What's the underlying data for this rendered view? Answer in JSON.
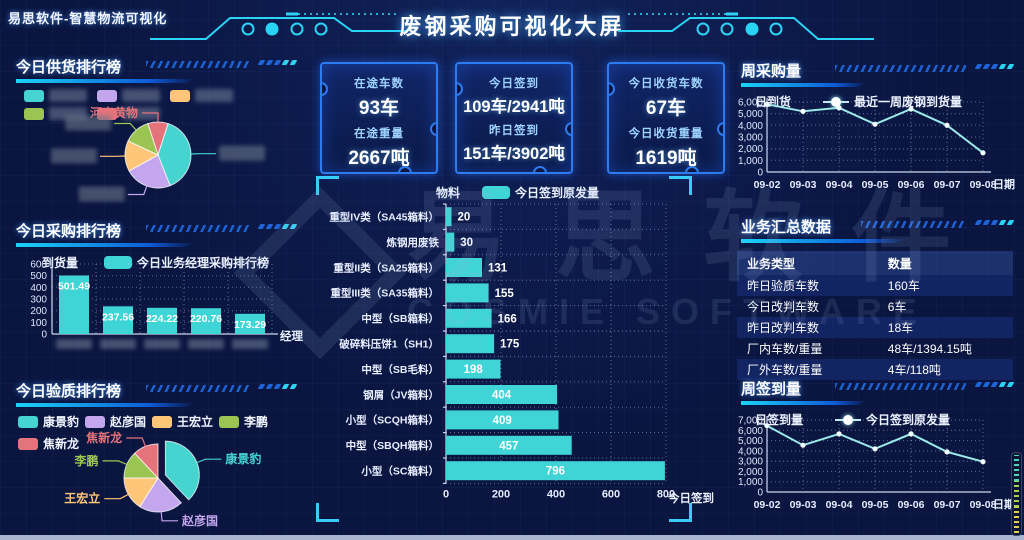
{
  "header": {
    "logo_text": "易思软件-智慧物流可视化",
    "title": "废钢采购可视化大屏"
  },
  "watermark": {
    "cn": "易思软件",
    "en": "COSMIE SOFTWARE"
  },
  "colors": {
    "accent_cyan": "#2bd3f5",
    "bar_teal": "#3fd4d6",
    "line_cyan": "#9ce9e9",
    "card_border": "#2e7bf0",
    "pie_palette": [
      "#45d4cf",
      "#c3a6ee",
      "#ffc578",
      "#9ac553",
      "#e5737b"
    ]
  },
  "panels": {
    "supply": {
      "title": "今日供货排行榜"
    },
    "purchase": {
      "title": "今日采购排行榜"
    },
    "quality": {
      "title": "今日验质排行榜"
    },
    "week_purchase": {
      "title": "周采购量"
    },
    "summary": {
      "title": "业务汇总数据"
    },
    "week_signin": {
      "title": "周签到量"
    }
  },
  "stat_cards": [
    {
      "rows": [
        {
          "label": "在途车数",
          "value": "93车"
        },
        {
          "label": "在途重量",
          "value": "2667吨"
        }
      ]
    },
    {
      "rows": [
        {
          "label": "今日签到",
          "value": "109车/2941吨"
        },
        {
          "label": "昨日签到",
          "value": "151车/3902吨"
        }
      ]
    },
    {
      "rows": [
        {
          "label": "今日收货车数",
          "value": "67车"
        },
        {
          "label": "今日收货重量",
          "value": "1619吨"
        }
      ]
    }
  ],
  "chart_data": [
    {
      "id": "supply_pie",
      "type": "pie",
      "title": "今日供货排行榜",
      "start_angle": -18,
      "slices": [
        {
          "name": "河南黄物",
          "value": 10,
          "color": "#e5737b",
          "redacted": false
        },
        {
          "name": "",
          "value": 39,
          "color": "#45d4cf",
          "redacted": true
        },
        {
          "name": "",
          "value": 23,
          "color": "#c3a6ee",
          "redacted": true
        },
        {
          "name": "",
          "value": 15,
          "color": "#ffc578",
          "redacted": true
        },
        {
          "name": "",
          "value": 13,
          "color": "#9ac553",
          "redacted": true
        }
      ],
      "legend_colors": [
        "#45d4cf",
        "#c3a6ee",
        "#ffc578",
        "#9ac553",
        "#e5737b"
      ],
      "legend_redacted": true
    },
    {
      "id": "purchase_bar",
      "type": "bar",
      "ylabel": "到货量",
      "xlabel": "经理",
      "legend": "今日业务经理采购排行榜",
      "ylim": [
        0,
        600
      ],
      "ytick_step": 100,
      "values": [
        501.49,
        237.56,
        224.22,
        220.76,
        173.29
      ],
      "categories_redacted": true,
      "bar_color": "#3fd4d6"
    },
    {
      "id": "material_bar",
      "type": "bar-horizontal",
      "ylabel": "物料",
      "xlabel": "今日签到",
      "legend": "今日签到原发量",
      "xlim": [
        0,
        800
      ],
      "xticks": [
        0,
        200,
        400,
        600,
        800
      ],
      "categories": [
        "重型IV类（SA45箱料）",
        "炼钢用废铁",
        "重型II类（SA25箱料）",
        "重型III类（SA35箱料）",
        "中型（SB箱料）",
        "破碎料压饼1（SH1）",
        "中型（SB毛料）",
        "钢屑（JV箱料）",
        "小型（SCQH箱料）",
        "中型（SBQH箱料）",
        "小型（SC箱料）"
      ],
      "values": [
        20,
        30,
        131,
        155,
        166,
        175,
        198,
        404,
        409,
        457,
        796
      ],
      "bar_color": "#3fd4d6"
    },
    {
      "id": "week_purchase_line",
      "type": "line",
      "ylabel": "日到货",
      "xlabel": "日期",
      "legend": "最近一周废钢到货量",
      "ylim": [
        0,
        6000
      ],
      "ytick_step": 1000,
      "x": [
        "09-02",
        "09-03",
        "09-04",
        "09-05",
        "09-06",
        "09-07",
        "09-08"
      ],
      "values": [
        5800,
        5200,
        5500,
        4100,
        5400,
        4000,
        1650
      ],
      "line_color": "#9ce9e9"
    },
    {
      "id": "summary_table",
      "type": "table",
      "headers": [
        "业务类型",
        "数量"
      ],
      "rows": [
        [
          "昨日验质车数",
          "160车"
        ],
        [
          "今日改判车数",
          "6车"
        ],
        [
          "昨日改判车数",
          "18车"
        ],
        [
          "厂内车数/重量",
          "48车/1394.15吨"
        ],
        [
          "厂外车数/重量",
          "4车/118吨"
        ]
      ]
    },
    {
      "id": "week_signin_line",
      "type": "line",
      "ylabel": "日签到量",
      "xlabel": "日期",
      "legend": "今日签到原发量",
      "ylim": [
        0,
        7000
      ],
      "ytick_step": 1000,
      "x": [
        "09-02",
        "09-03",
        "09-04",
        "09-05",
        "09-06",
        "09-07",
        "09-08"
      ],
      "values": [
        6450,
        4550,
        5650,
        4200,
        5650,
        3900,
        2950
      ],
      "line_color": "#9ce9e9"
    },
    {
      "id": "quality_pie",
      "type": "pie",
      "title": "今日验质排行榜",
      "start_angle": 0,
      "slices": [
        {
          "name": "康景豹",
          "value": 38,
          "color": "#45d4cf",
          "exploded": true
        },
        {
          "name": "赵彦国",
          "value": 21,
          "color": "#c3a6ee"
        },
        {
          "name": "王宏立",
          "value": 16,
          "color": "#ffc578"
        },
        {
          "name": "李鹏",
          "value": 13,
          "color": "#9ac553"
        },
        {
          "name": "焦新龙",
          "value": 12,
          "color": "#e5737b"
        }
      ]
    }
  ]
}
